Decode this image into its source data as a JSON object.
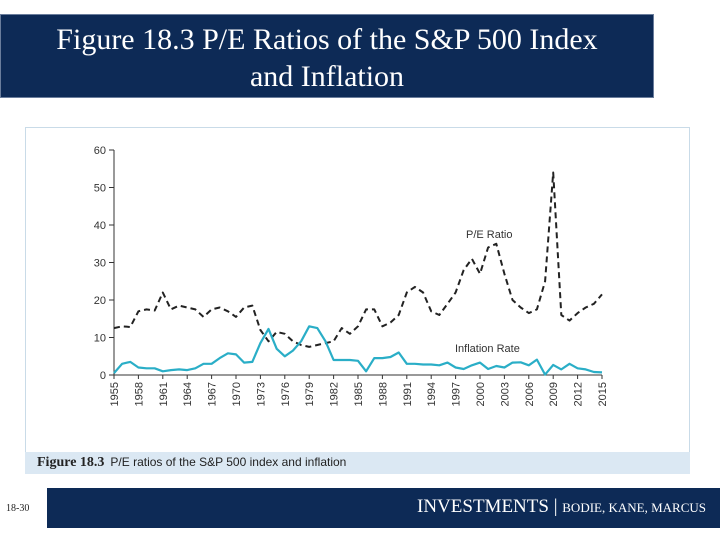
{
  "slide": {
    "title_line1": "Figure 18.3 P/E Ratios of the S&P 500 Index",
    "title_line2": "and Inflation",
    "page_number": "18-30",
    "footer_book": "INVESTMENTS",
    "footer_sep": " | ",
    "footer_authors": "BODIE, KANE, MARCUS"
  },
  "figure": {
    "label": "Figure 18.3",
    "caption": "P/E ratios of the S&P 500 index and inflation"
  },
  "colors": {
    "title_bg": "#0d2a56",
    "pe_line": "#222222",
    "inflation_line": "#2aaec7",
    "axis": "#333333"
  },
  "chart_data": {
    "type": "line",
    "title": "P/E ratios of the S&P 500 index and inflation",
    "xlabel": "",
    "ylabel": "",
    "xlim": [
      1955,
      2015
    ],
    "ylim": [
      0,
      60
    ],
    "yticks": [
      0,
      10,
      20,
      30,
      40,
      50,
      60
    ],
    "xticks": [
      "1955",
      "1958",
      "1961",
      "1964",
      "1967",
      "1970",
      "1973",
      "1976",
      "1979",
      "1982",
      "1985",
      "1988",
      "1991",
      "1994",
      "1997",
      "2000",
      "2003",
      "2006",
      "2009",
      "2012",
      "2015"
    ],
    "x": [
      1955,
      1956,
      1957,
      1958,
      1959,
      1960,
      1961,
      1962,
      1963,
      1964,
      1965,
      1966,
      1967,
      1968,
      1969,
      1970,
      1971,
      1972,
      1973,
      1974,
      1975,
      1976,
      1977,
      1978,
      1979,
      1980,
      1981,
      1982,
      1983,
      1984,
      1985,
      1986,
      1987,
      1988,
      1989,
      1990,
      1991,
      1992,
      1993,
      1994,
      1995,
      1996,
      1997,
      1998,
      1999,
      2000,
      2001,
      2002,
      2003,
      2004,
      2005,
      2006,
      2007,
      2008,
      2009,
      2010,
      2011,
      2012,
      2013,
      2014,
      2015
    ],
    "series": [
      {
        "name": "P/E Ratio",
        "style": "dashed",
        "label": "P/E Ratio",
        "values": [
          12.5,
          13,
          12.8,
          17,
          17.5,
          17.2,
          22,
          17.5,
          18.5,
          18,
          17.5,
          15.5,
          17.5,
          18,
          17,
          15.5,
          18,
          18.5,
          12,
          9,
          11.5,
          11,
          9,
          8,
          7.5,
          8,
          8.5,
          9,
          12.5,
          11,
          13,
          17.5,
          17.5,
          13,
          14,
          16,
          22,
          23.5,
          22,
          17,
          16,
          19,
          22,
          28,
          31,
          27,
          34,
          35,
          27,
          20,
          18,
          16.5,
          17.5,
          25,
          54,
          16,
          14.5,
          16.5,
          18,
          19,
          21.5
        ]
      },
      {
        "name": "Inflation Rate",
        "style": "solid",
        "label": "Inflation Rate",
        "values": [
          0.5,
          3,
          3.5,
          2,
          1.8,
          1.8,
          1,
          1.3,
          1.5,
          1.3,
          1.8,
          3,
          3,
          4.5,
          5.8,
          5.5,
          3.3,
          3.5,
          8.5,
          12.3,
          7,
          5,
          6.5,
          9,
          13,
          12.5,
          9,
          4,
          4,
          4,
          3.8,
          1,
          4.5,
          4.5,
          4.8,
          6,
          3,
          3,
          2.8,
          2.8,
          2.6,
          3.3,
          2,
          1.6,
          2.6,
          3.3,
          1.6,
          2.4,
          2,
          3.3,
          3.4,
          2.6,
          4.1,
          0.1,
          2.7,
          1.5,
          3,
          1.8,
          1.5,
          0.8,
          0.7
        ]
      }
    ]
  }
}
